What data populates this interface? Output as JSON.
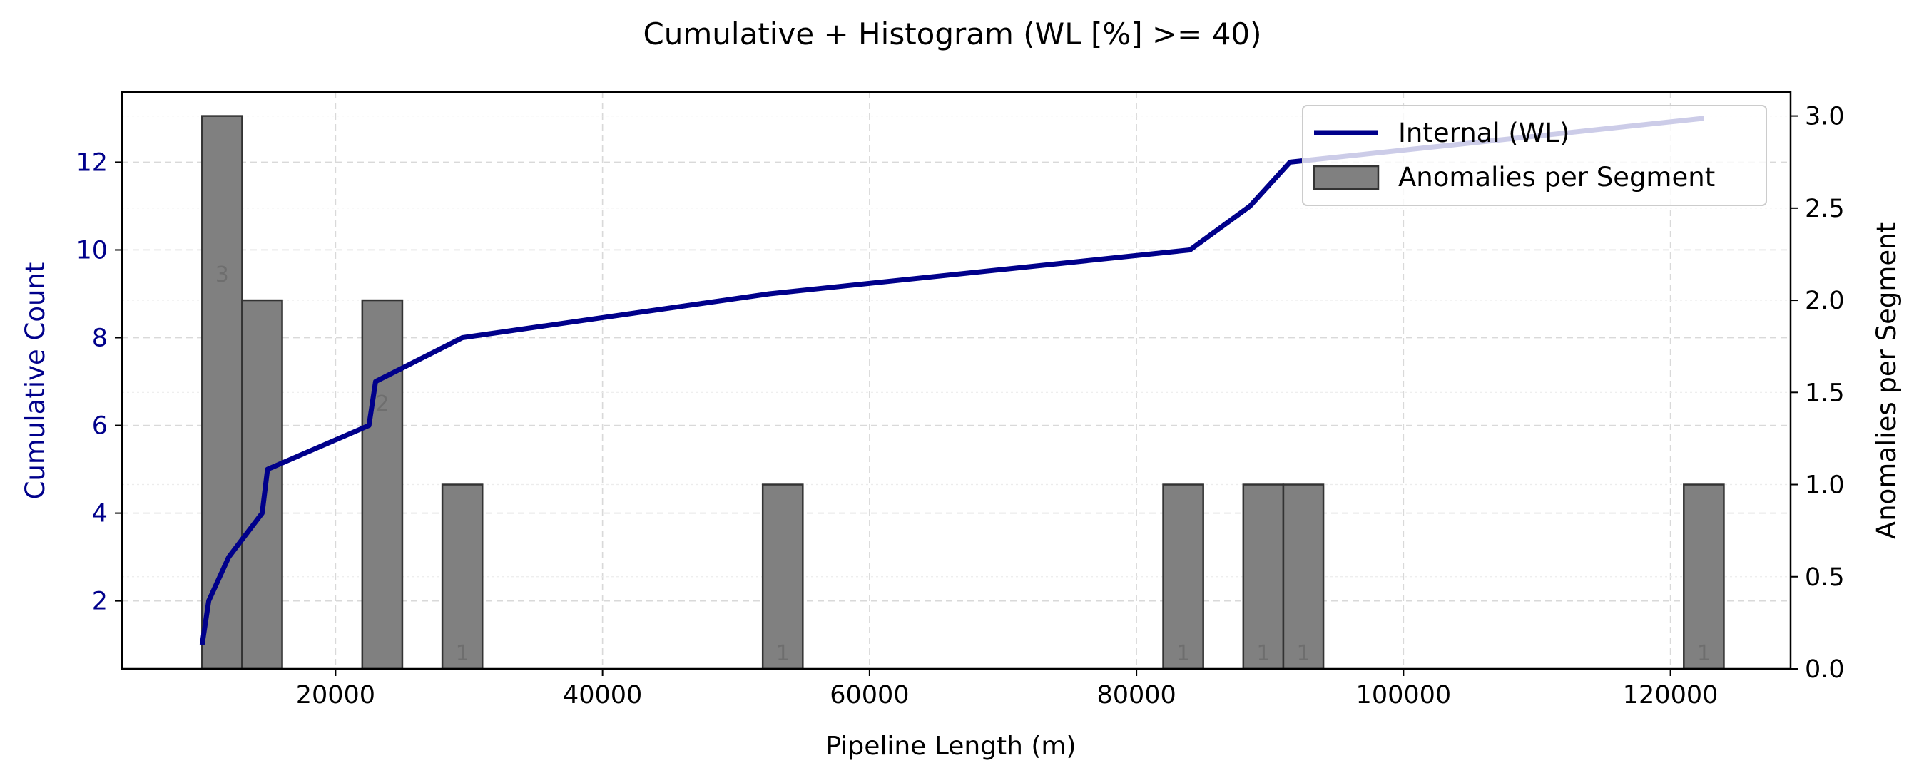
{
  "chart_data": {
    "type": "bar",
    "title": "Cumulative + Histogram (WL [%] >= 40)",
    "xlabel": "Pipeline Length (m)",
    "ylabel_left": "Cumulative Count",
    "ylabel_right": "Anomalies per Segment",
    "xlim": [
      4000,
      129000
    ],
    "ylim_left": [
      0.45,
      13.6
    ],
    "ylim_right": [
      0,
      3.13
    ],
    "x_ticks": [
      20000,
      40000,
      60000,
      80000,
      100000,
      120000
    ],
    "y_left_ticks": [
      2,
      4,
      6,
      8,
      10,
      12
    ],
    "y_right_ticks": [
      0.0,
      0.5,
      1.0,
      1.5,
      2.0,
      2.5,
      3.0
    ],
    "grid": true,
    "legend_position": "top-right",
    "colors": {
      "line": "#00008b",
      "bar_fill": "#808080",
      "bar_edge": "#333333",
      "left_axis_text": "#00008b"
    },
    "series": [
      {
        "name": "Internal (WL)",
        "kind": "line",
        "axis": "left",
        "x": [
          10000,
          10500,
          12000,
          14500,
          14900,
          22500,
          23000,
          29500,
          52500,
          84000,
          88500,
          91500,
          122500
        ],
        "y": [
          1,
          2,
          3,
          4,
          5,
          6,
          7,
          8,
          9,
          10,
          11,
          12,
          13
        ]
      },
      {
        "name": "Anomalies per Segment",
        "kind": "bar",
        "axis": "right",
        "bins": [
          {
            "x0": 10000,
            "x1": 13000,
            "value": 3,
            "label": "3"
          },
          {
            "x0": 13000,
            "x1": 16000,
            "value": 2,
            "label": ""
          },
          {
            "x0": 22000,
            "x1": 25000,
            "value": 2,
            "label": "2"
          },
          {
            "x0": 28000,
            "x1": 31000,
            "value": 1,
            "label": "1"
          },
          {
            "x0": 52000,
            "x1": 55000,
            "value": 1,
            "label": "1"
          },
          {
            "x0": 82000,
            "x1": 85000,
            "value": 1,
            "label": "1"
          },
          {
            "x0": 88000,
            "x1": 91000,
            "value": 1,
            "label": "1"
          },
          {
            "x0": 91000,
            "x1": 94000,
            "value": 1,
            "label": "1"
          },
          {
            "x0": 121000,
            "x1": 124000,
            "value": 1,
            "label": "1"
          }
        ]
      }
    ]
  }
}
